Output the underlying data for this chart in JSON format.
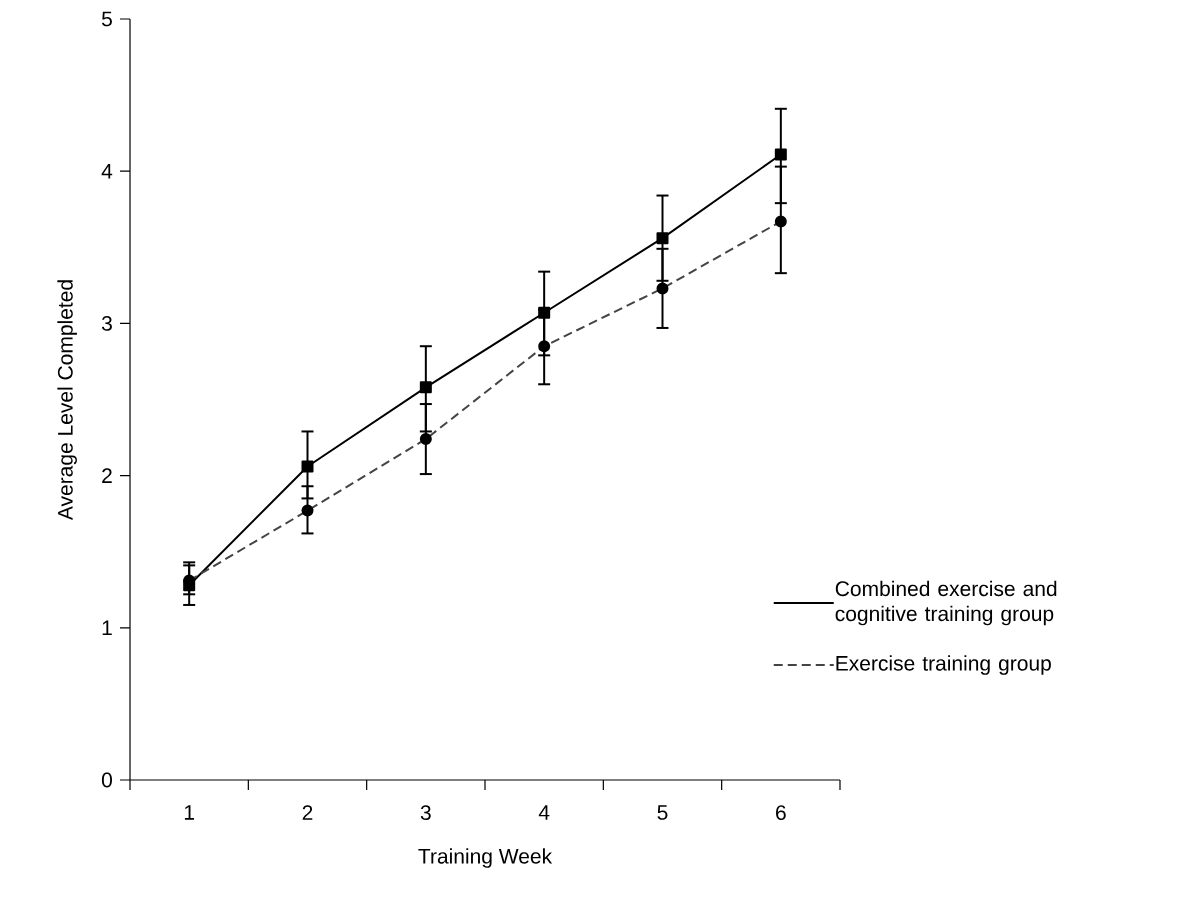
{
  "chart_data": {
    "type": "line",
    "xlabel": "Training Week",
    "ylabel": "Average Level Completed",
    "categories": [
      "1",
      "2",
      "3",
      "4",
      "5",
      "6"
    ],
    "series": [
      {
        "name": "Combined exercise and cognitive training group",
        "color": "#000000",
        "marker": "square",
        "line_style": "solid",
        "values": [
          1.28,
          2.06,
          2.58,
          3.07,
          3.56,
          4.11
        ],
        "errors": [
          [
            1.15,
            1.41
          ],
          [
            1.85,
            2.29
          ],
          [
            2.29,
            2.85
          ],
          [
            2.79,
            3.34
          ],
          [
            3.28,
            3.84
          ],
          [
            3.79,
            4.41
          ]
        ]
      },
      {
        "name": "Exercise training group",
        "color": "#444444",
        "marker": "circle",
        "line_style": "dashed",
        "values": [
          1.31,
          1.77,
          2.24,
          2.85,
          3.23,
          3.67
        ],
        "errors": [
          [
            1.22,
            1.43
          ],
          [
            1.62,
            1.93
          ],
          [
            2.01,
            2.47
          ],
          [
            2.6,
            3.09
          ],
          [
            2.97,
            3.49
          ],
          [
            3.33,
            4.03
          ]
        ]
      }
    ],
    "ylim": [
      0,
      5
    ],
    "yticks": [
      0,
      1,
      2,
      3,
      4,
      5
    ],
    "grid": false,
    "legend": "right"
  }
}
